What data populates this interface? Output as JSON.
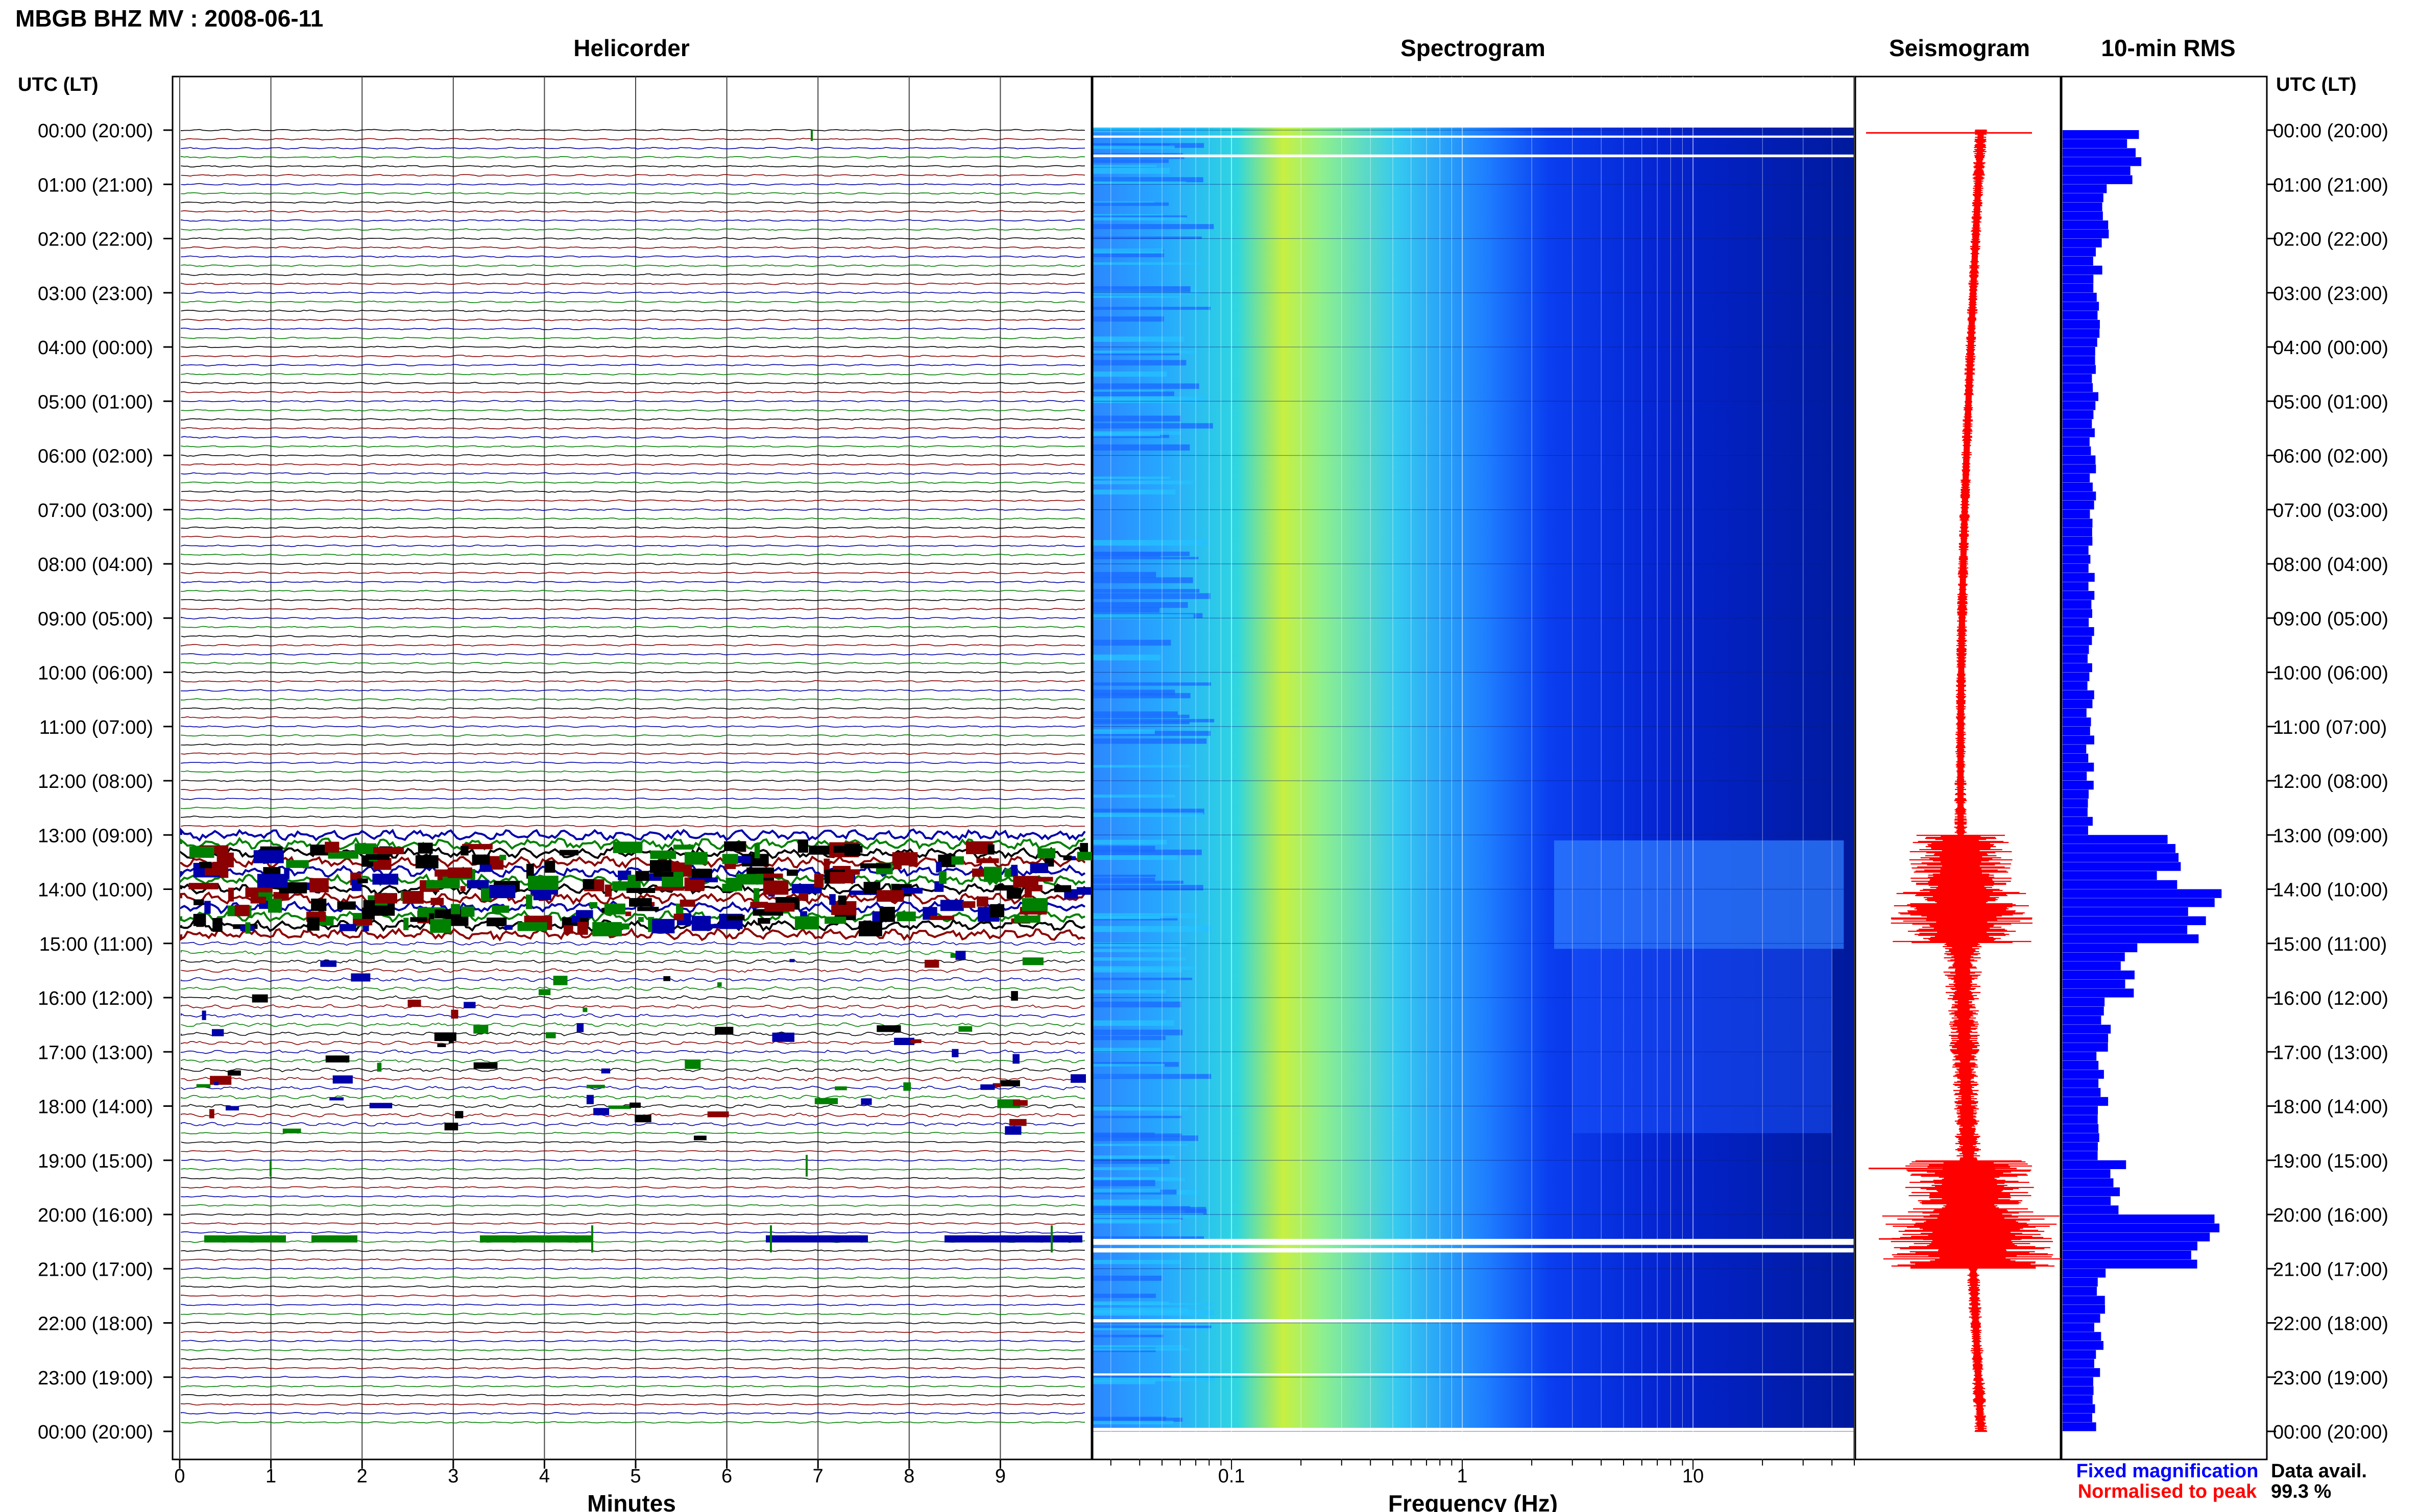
{
  "header": {
    "station_title": "MBGB BHZ MV : 2008-06-11"
  },
  "panels": {
    "helicorder": "Helicorder",
    "spectrogram": "Spectrogram",
    "seismogram": "Seismogram",
    "rms": "10-min RMS"
  },
  "time_axis": {
    "label_left": "UTC (LT)",
    "label_right": "UTC (LT)",
    "ticks": [
      "00:00 (20:00)",
      "01:00 (21:00)",
      "02:00 (22:00)",
      "03:00 (23:00)",
      "04:00 (00:00)",
      "05:00 (01:00)",
      "06:00 (02:00)",
      "07:00 (03:00)",
      "08:00 (04:00)",
      "09:00 (05:00)",
      "10:00 (06:00)",
      "11:00 (07:00)",
      "12:00 (08:00)",
      "13:00 (09:00)",
      "14:00 (10:00)",
      "15:00 (11:00)",
      "16:00 (12:00)",
      "17:00 (13:00)",
      "18:00 (14:00)",
      "19:00 (15:00)",
      "20:00 (16:00)",
      "21:00 (17:00)",
      "22:00 (18:00)",
      "23:00 (19:00)",
      "00:00 (20:00)"
    ]
  },
  "helicorder_axis": {
    "xlabel": "Minutes",
    "ticks": [
      "0",
      "1",
      "2",
      "3",
      "4",
      "5",
      "6",
      "7",
      "8",
      "9"
    ]
  },
  "spectrogram_axis": {
    "xlabel": "Frequency (Hz)",
    "ticks": [
      "0.1",
      "1",
      "10"
    ]
  },
  "legend": {
    "fixed": "Fixed magnification",
    "fixed_color": "#0000ff",
    "normalised": "Normalised to peak",
    "normalised_color": "#ff0000"
  },
  "availability": {
    "label": "Data avail.",
    "value": "99.3 %"
  },
  "colors": {
    "trace_black": "#000000",
    "trace_red": "#8b0000",
    "trace_blue": "#0000aa",
    "trace_green": "#008000",
    "rms_bar": "#0000ff",
    "seismogram": "#ff0000"
  },
  "chart_data": {
    "type": "heatmap",
    "helicorder_minutes_per_line": 10,
    "spectrogram_frequency_range_hz": [
      0.025,
      50
    ],
    "time_range_hours": [
      0,
      24
    ],
    "rms_by_hour": [
      0.9,
      0.55,
      0.45,
      0.42,
      0.4,
      0.38,
      0.37,
      0.36,
      0.36,
      0.35,
      0.35,
      0.35,
      0.36,
      1.3,
      1.8,
      0.85,
      0.55,
      0.5,
      0.45,
      0.7,
      1.9,
      0.5,
      0.45,
      0.4
    ],
    "seismogram_envelope_by_hour": [
      0.05,
      0.04,
      0.04,
      0.04,
      0.04,
      0.04,
      0.04,
      0.04,
      0.04,
      0.04,
      0.04,
      0.04,
      0.05,
      0.4,
      0.55,
      0.15,
      0.12,
      0.1,
      0.1,
      0.5,
      0.7,
      0.05,
      0.05,
      0.05
    ]
  }
}
